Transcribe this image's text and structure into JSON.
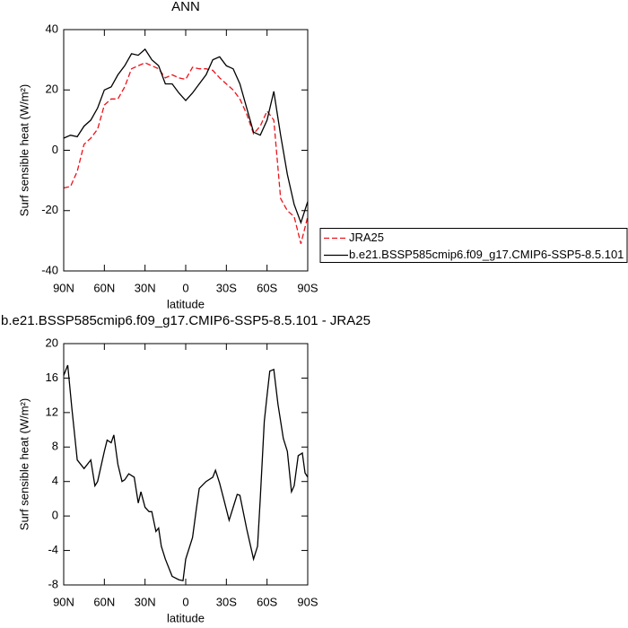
{
  "chart_data": [
    {
      "type": "line",
      "title": "ANN",
      "xlabel": "latitude",
      "ylabel": "Surf sensible heat (W/m²)",
      "x": [
        90,
        85,
        80,
        75,
        70,
        65,
        60,
        55,
        50,
        45,
        40,
        35,
        30,
        25,
        20,
        15,
        10,
        5,
        0,
        -5,
        -10,
        -15,
        -20,
        -25,
        -30,
        -35,
        -40,
        -45,
        -50,
        -55,
        -60,
        -65,
        -70,
        -75,
        -80,
        -85,
        -90
      ],
      "series": [
        {
          "name": "JRA25",
          "color": "#e8141c",
          "style": "dashed",
          "values": [
            -12.5,
            -12,
            -7,
            2,
            4,
            7,
            15,
            17,
            17,
            21,
            27,
            28,
            29,
            28,
            27,
            24,
            25,
            24,
            23.5,
            27.5,
            27,
            27,
            26.5,
            24,
            22,
            20,
            17,
            12,
            5.5,
            8,
            13,
            10,
            -16,
            -20,
            -22,
            -31,
            -22
          ]
        },
        {
          "name": "b.e21.BSSP585cmip6.f09_g17.CMIP6-SSP5-8.5.101",
          "color": "#000000",
          "style": "solid",
          "values": [
            4,
            5,
            4.5,
            8,
            10,
            14,
            20,
            21,
            25,
            28,
            32,
            31.5,
            33.5,
            30,
            28,
            22,
            22,
            19,
            16.5,
            19,
            22,
            25,
            30,
            31,
            28,
            27,
            22,
            14,
            6,
            5,
            10,
            19.5,
            5,
            -8,
            -18,
            -24,
            -17
          ]
        }
      ],
      "xlim": [
        90,
        -90
      ],
      "xticks": [
        {
          "value": 90,
          "label": "90N"
        },
        {
          "value": 60,
          "label": "60N"
        },
        {
          "value": 30,
          "label": "30N"
        },
        0,
        {
          "value": -30,
          "label": "30S"
        },
        {
          "value": -60,
          "label": "60S"
        },
        {
          "value": -90,
          "label": "90S"
        }
      ],
      "ylim": [
        -40,
        40
      ],
      "yticks": [
        -40,
        -20,
        0,
        20,
        40
      ],
      "legend": "right"
    },
    {
      "type": "line",
      "title": "b.e21.BSSP585cmip6.f09_g17.CMIP6-SSP5-8.5.101 - JRA25",
      "xlabel": "latitude",
      "ylabel": "Surf sensible heat (W/m²)",
      "x": [
        90,
        87,
        84,
        80,
        75,
        70,
        67,
        65,
        60,
        58,
        55,
        53,
        50,
        47,
        45,
        42,
        38,
        35,
        33,
        30,
        27,
        25,
        22,
        20,
        18,
        15,
        10,
        5,
        2,
        0,
        -5,
        -8,
        -10,
        -15,
        -20,
        -22,
        -25,
        -28,
        -32,
        -35,
        -38,
        -40,
        -45,
        -50,
        -53,
        -55,
        -58,
        -60,
        -62,
        -65,
        -68,
        -72,
        -75,
        -78,
        -80,
        -83,
        -86,
        -88,
        -90
      ],
      "series": [
        {
          "color": "#000000",
          "style": "solid",
          "values": [
            16.3,
            17.5,
            12.5,
            6.5,
            5.5,
            6.5,
            3.5,
            4,
            7.5,
            8.8,
            8.5,
            9.4,
            6,
            4,
            4.2,
            4.9,
            4.5,
            1.5,
            2.8,
            1,
            0.5,
            0.5,
            -1.8,
            -1.4,
            -3.5,
            -5,
            -7,
            -7.4,
            -7.5,
            -5,
            -2.5,
            1,
            3.2,
            4,
            4.5,
            5.3,
            3.8,
            2,
            -0.5,
            1,
            2.5,
            2.4,
            -1.5,
            -5,
            -3.5,
            2,
            11,
            14,
            16.8,
            17,
            13,
            9,
            7.5,
            2.8,
            3.5,
            7,
            7.3,
            5,
            4.5
          ]
        }
      ],
      "xlim": [
        90,
        -90
      ],
      "xticks": [
        {
          "value": 90,
          "label": "90N"
        },
        {
          "value": 60,
          "label": "60N"
        },
        {
          "value": 30,
          "label": "30N"
        },
        0,
        {
          "value": -30,
          "label": "30S"
        },
        {
          "value": -60,
          "label": "60S"
        },
        {
          "value": -90,
          "label": "90S"
        }
      ],
      "ylim": [
        -8,
        20
      ],
      "yticks": [
        -8,
        -4,
        0,
        4,
        8,
        12,
        16,
        20
      ]
    }
  ]
}
